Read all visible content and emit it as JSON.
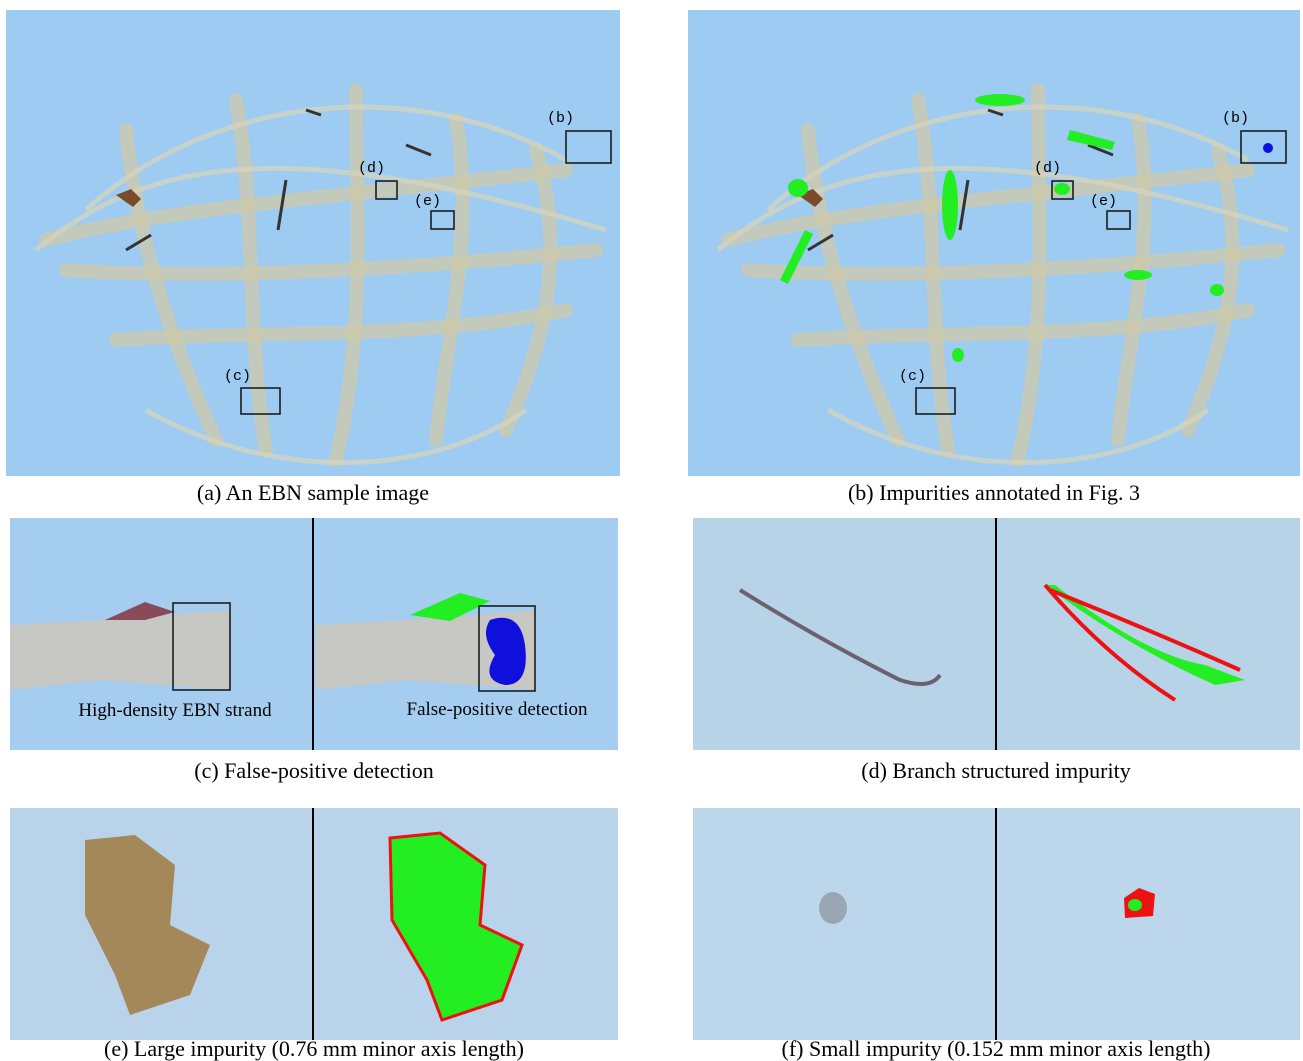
{
  "panels": [
    {
      "caption": "(a) An EBN sample image",
      "boxes": [
        "(b)",
        "(d)",
        "(e)",
        "(c)"
      ]
    },
    {
      "caption": "(b) Impurities annotated in Fig. 3",
      "boxes": [
        "(b)",
        "(d)",
        "(e)",
        "(c)"
      ]
    },
    {
      "caption": "(c) False-positive detection",
      "notes": [
        "High-density EBN strand",
        "False-positive detection"
      ]
    },
    {
      "caption": "(d) Branch structured impurity"
    },
    {
      "caption": "(e) Large impurity (0.76 mm minor axis length)"
    },
    {
      "caption": "(f) Small impurity (0.152 mm minor axis length)"
    }
  ]
}
